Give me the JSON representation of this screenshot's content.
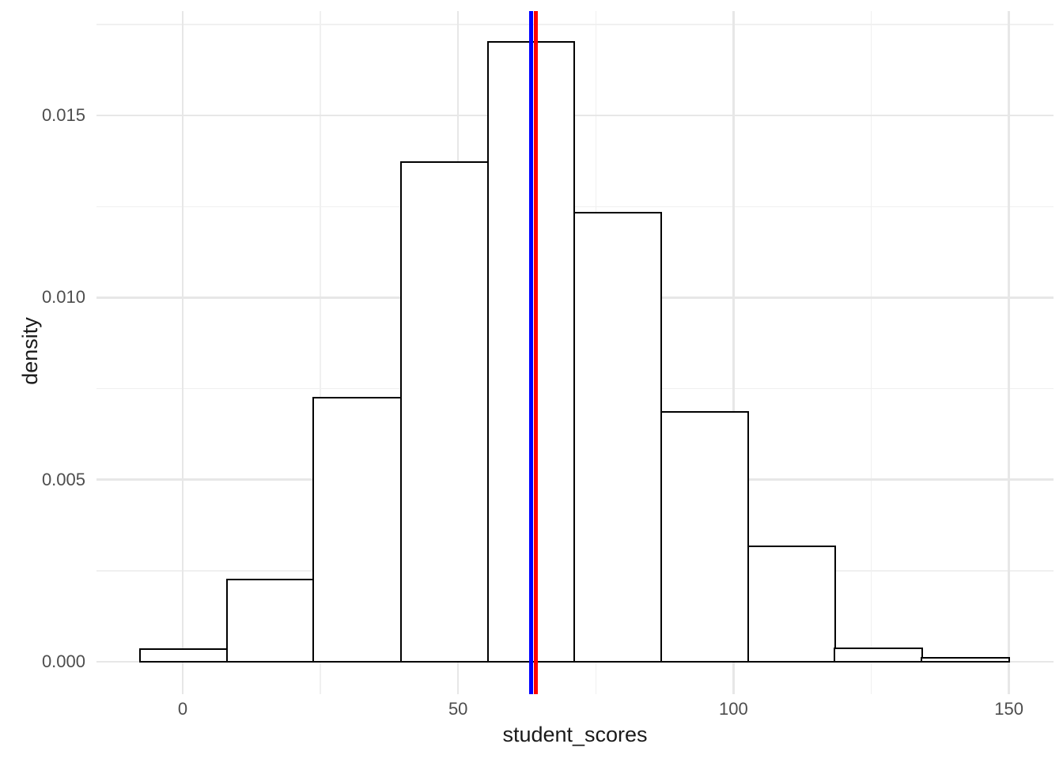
{
  "chart_data": {
    "type": "bar",
    "chart_kind": "histogram",
    "title": "",
    "xlabel": "student_scores",
    "ylabel": "density",
    "bins": {
      "edges": [
        -7.7,
        8.1,
        23.8,
        39.6,
        55.4,
        71.1,
        86.9,
        102.7,
        118.4,
        134.2,
        150.0
      ],
      "densities": [
        0.00035,
        0.00226,
        0.00724,
        0.01372,
        0.01702,
        0.01233,
        0.00685,
        0.00317,
        0.00037,
        0.00011
      ]
    },
    "x_ticks": {
      "values": [
        0,
        50,
        100,
        150
      ],
      "labels": [
        "0",
        "50",
        "100",
        "150"
      ]
    },
    "y_ticks": {
      "values": [
        0,
        0.005,
        0.01,
        0.015
      ],
      "labels": [
        "0.000",
        "0.005",
        "0.010",
        "0.015"
      ]
    },
    "x_minor": [
      25,
      75,
      125
    ],
    "y_minor": [
      0.0025,
      0.0075,
      0.0125,
      0.0175
    ],
    "xlim": [
      -15.65,
      158.1
    ],
    "ylim": [
      -0.00089,
      0.01787
    ],
    "grid": true,
    "legend": "none",
    "vlines": [
      {
        "x": 63.3,
        "color": "#0000FF",
        "name": "vline-blue"
      },
      {
        "x": 64.1,
        "color": "#FF0000",
        "name": "vline-red"
      }
    ],
    "bar_style": {
      "fill": "#FFFFFF",
      "stroke": "#000000",
      "stroke_width": 2.5
    },
    "colors": {
      "background": "#FFFFFF",
      "grid_major": "#E7E7E7",
      "grid_minor": "#F0F0F0",
      "tick_label": "#4D4D4D",
      "axis_title": "#1A1A1A"
    }
  }
}
